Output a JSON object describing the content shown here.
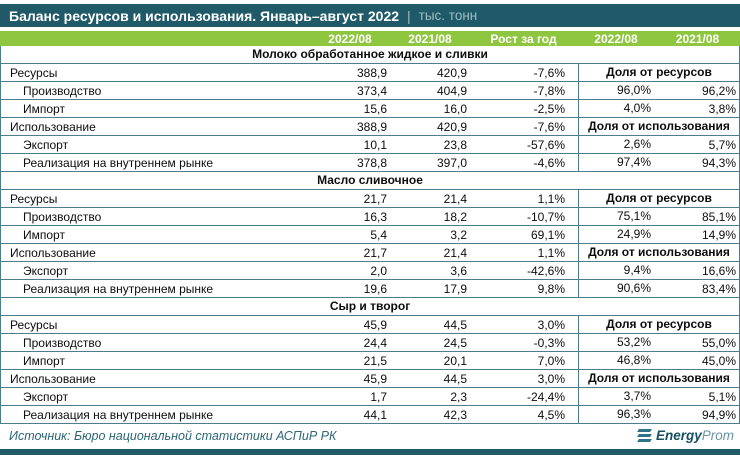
{
  "title": {
    "main": "Баланс ресурсов и использования. Январь–август 2022",
    "separator": "|",
    "unit": "тыс. тонн"
  },
  "chart_data": {
    "type": "table",
    "title": "Баланс ресурсов и использования. Январь–август 2022, тыс. тонн",
    "columns": [
      "2022/08",
      "2021/08",
      "Рост за год",
      "2022/08",
      "2021/08"
    ],
    "share_group_labels": {
      "resources": "Доля от ресурсов",
      "usage": "Доля от использования"
    },
    "sections": [
      {
        "name": "Молоко обработанное жидкое и сливки",
        "rows": [
          {
            "label": "Ресурсы",
            "v2022": "388,9",
            "v2021": "420,9",
            "growth": "-7,6%",
            "share_label": "Доля от ресурсов"
          },
          {
            "label": "Производство",
            "v2022": "373,4",
            "v2021": "404,9",
            "growth": "-7,8%",
            "share2022": "96,0%",
            "share2021": "96,2%"
          },
          {
            "label": "Импорт",
            "v2022": "15,6",
            "v2021": "16,0",
            "growth": "-2,5%",
            "share2022": "4,0%",
            "share2021": "3,8%"
          },
          {
            "label": "Использование",
            "v2022": "388,9",
            "v2021": "420,9",
            "growth": "-7,6%",
            "share_label": "Доля от использования"
          },
          {
            "label": "Экспорт",
            "v2022": "10,1",
            "v2021": "23,8",
            "growth": "-57,6%",
            "share2022": "2,6%",
            "share2021": "5,7%"
          },
          {
            "label": "Реализация на внутреннем рынке",
            "v2022": "378,8",
            "v2021": "397,0",
            "growth": "-4,6%",
            "share2022": "97,4%",
            "share2021": "94,3%"
          }
        ]
      },
      {
        "name": "Масло сливочное",
        "rows": [
          {
            "label": "Ресурсы",
            "v2022": "21,7",
            "v2021": "21,4",
            "growth": "1,1%",
            "share_label": "Доля от ресурсов"
          },
          {
            "label": "Производство",
            "v2022": "16,3",
            "v2021": "18,2",
            "growth": "-10,7%",
            "share2022": "75,1%",
            "share2021": "85,1%"
          },
          {
            "label": "Импорт",
            "v2022": "5,4",
            "v2021": "3,2",
            "growth": "69,1%",
            "share2022": "24,9%",
            "share2021": "14,9%"
          },
          {
            "label": "Использование",
            "v2022": "21,7",
            "v2021": "21,4",
            "growth": "1,1%",
            "share_label": "Доля от использования"
          },
          {
            "label": "Экспорт",
            "v2022": "2,0",
            "v2021": "3,6",
            "growth": "-42,6%",
            "share2022": "9,4%",
            "share2021": "16,6%"
          },
          {
            "label": "Реализация на внутреннем рынке",
            "v2022": "19,6",
            "v2021": "17,9",
            "growth": "9,8%",
            "share2022": "90,6%",
            "share2021": "83,4%"
          }
        ]
      },
      {
        "name": "Сыр и творог",
        "rows": [
          {
            "label": "Ресурсы",
            "v2022": "45,9",
            "v2021": "44,5",
            "growth": "3,0%",
            "share_label": "Доля от ресурсов"
          },
          {
            "label": "Производство",
            "v2022": "24,4",
            "v2021": "24,5",
            "growth": "-0,3%",
            "share2022": "53,2%",
            "share2021": "55,0%"
          },
          {
            "label": "Импорт",
            "v2022": "21,5",
            "v2021": "20,1",
            "growth": "7,0%",
            "share2022": "46,8%",
            "share2021": "45,0%"
          },
          {
            "label": "Использование",
            "v2022": "45,9",
            "v2021": "44,5",
            "growth": "3,0%",
            "share_label": "Доля от использования"
          },
          {
            "label": "Экспорт",
            "v2022": "1,7",
            "v2021": "2,3",
            "growth": "-24,4%",
            "share2022": "3,7%",
            "share2021": "5,1%"
          },
          {
            "label": "Реализация на внутреннем рынке",
            "v2022": "44,1",
            "v2021": "42,3",
            "growth": "4,5%",
            "share2022": "96,3%",
            "share2021": "94,9%"
          }
        ]
      }
    ]
  },
  "footer": {
    "source": "Источник: Бюро национальной статистики АСПиР РК",
    "logo_bold": "Energy",
    "logo_light": "Prom"
  },
  "colors": {
    "header_bar": "#205A69",
    "accent_green": "#8FC63F",
    "table_border": "#4D7E8F",
    "footer_text": "#2C6577"
  }
}
